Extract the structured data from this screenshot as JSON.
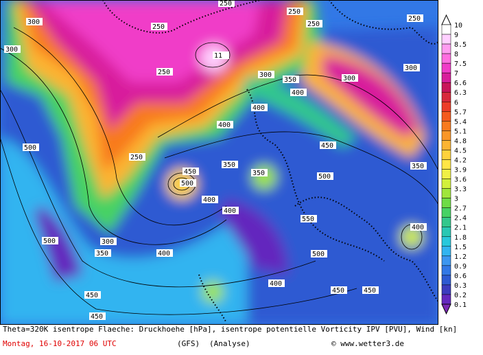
{
  "colorbar": {
    "labels": [
      "10",
      "9",
      "8.5",
      "8",
      "7.5",
      "7",
      "6.6",
      "6.3",
      "6",
      "5.7",
      "5.4",
      "5.1",
      "4.8",
      "4.5",
      "4.2",
      "3.9",
      "3.6",
      "3.3",
      "3",
      "2.7",
      "2.4",
      "2.1",
      "1.8",
      "1.5",
      "1.2",
      "0.9",
      "0.6",
      "0.3",
      "0.2",
      "0.1"
    ],
    "colors": [
      "#ffffff",
      "#ffd0ff",
      "#ff9cf0",
      "#ff6ee0",
      "#f03cc8",
      "#d81e9c",
      "#c8145a",
      "#d8283c",
      "#ec3c28",
      "#f45a1e",
      "#f87a1e",
      "#fa9628",
      "#fcb432",
      "#fed23c",
      "#ffe646",
      "#f0f046",
      "#d2f03c",
      "#a0e63c",
      "#6edc46",
      "#46d264",
      "#32c88c",
      "#28c8b4",
      "#28c8dc",
      "#32b4f0",
      "#3c96f0",
      "#3278e6",
      "#2d5ad2",
      "#3c3cbe",
      "#6428be",
      "#7a28b4"
    ]
  },
  "contour_labels": [
    "300",
    "250",
    "250",
    "250",
    "250",
    "250",
    "300",
    "11",
    "250",
    "300",
    "350",
    "400",
    "500",
    "450",
    "500",
    "250",
    "400",
    "350",
    "350",
    "400",
    "500",
    "400",
    "450",
    "500",
    "300",
    "350",
    "400",
    "500",
    "450",
    "450",
    "400",
    "450",
    "450",
    "350",
    "300",
    "300",
    "400",
    "550",
    "400"
  ],
  "footer": {
    "description": "Theta=320K isentrope Flaeche: Druckhoehe [hPa], isentrope potentielle Vorticity IPV [PVU], Wind [kn]",
    "date": "Montag, 16-10-2017  06 UTC",
    "model": "(GFS)",
    "run": "(Analyse)",
    "credit": "© www.wetter3.de"
  }
}
